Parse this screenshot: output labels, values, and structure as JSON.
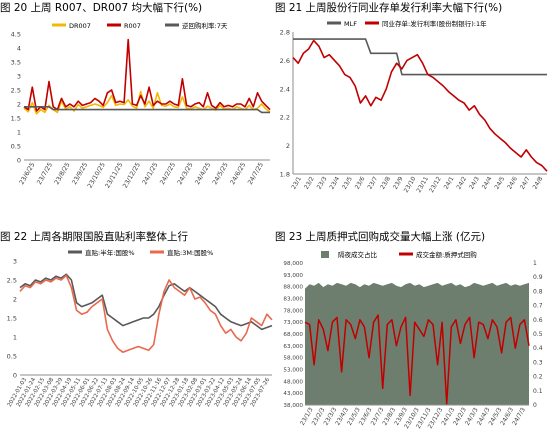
{
  "colors": {
    "orange": "#F5B800",
    "red": "#C00000",
    "dark": "#595959",
    "green": "#6E7E6E",
    "axis": "#8c8c8c"
  },
  "chart_data": [
    {
      "type": "line",
      "title": "图 20  上周 R007、DR007 均大幅下行(%)",
      "legend_position": "top",
      "ylim": [
        0,
        4.5
      ],
      "yticks": [
        "4.5",
        "4",
        "3.5",
        "3",
        "2.5",
        "2",
        "1.5",
        "1",
        "0.5",
        "0"
      ],
      "x_labels": [
        "23/6/25",
        "23/7/25",
        "23/8/25",
        "23/9/25",
        "23/10/25",
        "23/11/25",
        "23/12/25",
        "24/1/25",
        "24/2/25",
        "24/3/25",
        "24/4/25",
        "24/5/25",
        "24/6/25",
        "24/7/25"
      ],
      "series": [
        {
          "name": "DR007",
          "color": "#F5B800",
          "values": [
            1.85,
            1.72,
            2.05,
            1.65,
            1.8,
            1.7,
            1.95,
            1.8,
            1.7,
            2.1,
            1.82,
            1.9,
            1.75,
            1.98,
            1.85,
            1.9,
            1.95,
            2.0,
            1.95,
            1.88,
            2.05,
            2.3,
            1.95,
            2.0,
            1.98,
            2.15,
            1.92,
            1.85,
            2.45,
            1.9,
            2.1,
            1.85,
            2.4,
            1.95,
            1.92,
            2.0,
            1.9,
            1.88,
            2.25,
            1.85,
            1.82,
            1.9,
            1.85,
            1.8,
            1.92,
            1.85,
            1.78,
            1.95,
            1.82,
            1.85,
            1.8,
            1.9,
            1.85,
            1.8,
            1.95,
            1.8,
            1.85,
            2.0,
            1.82,
            1.72
          ]
        },
        {
          "name": "R007",
          "color": "#C00000",
          "values": [
            1.9,
            1.8,
            2.6,
            1.75,
            1.9,
            1.8,
            2.8,
            1.9,
            1.8,
            2.2,
            1.9,
            2.0,
            1.9,
            2.1,
            1.95,
            2.0,
            2.05,
            2.2,
            2.1,
            1.95,
            2.4,
            2.5,
            2.05,
            2.1,
            2.05,
            4.3,
            2.0,
            1.95,
            2.3,
            2.0,
            2.6,
            1.95,
            2.1,
            2.0,
            2.0,
            2.1,
            2.0,
            1.95,
            2.9,
            1.95,
            1.9,
            2.0,
            2.05,
            1.9,
            2.4,
            1.95,
            1.85,
            2.05,
            1.9,
            1.95,
            1.9,
            2.0,
            2.0,
            1.9,
            2.2,
            1.9,
            2.4,
            2.1,
            1.95,
            1.8
          ]
        },
        {
          "name": "逆回购利率:7天",
          "color": "#595959",
          "values": [
            1.9,
            1.9,
            1.9,
            1.9,
            1.9,
            1.9,
            1.9,
            1.8,
            1.8,
            1.8,
            1.8,
            1.8,
            1.8,
            1.8,
            1.8,
            1.8,
            1.8,
            1.8,
            1.8,
            1.8,
            1.8,
            1.8,
            1.8,
            1.8,
            1.8,
            1.8,
            1.8,
            1.8,
            1.8,
            1.8,
            1.8,
            1.8,
            1.8,
            1.8,
            1.8,
            1.8,
            1.8,
            1.8,
            1.8,
            1.8,
            1.8,
            1.8,
            1.8,
            1.8,
            1.8,
            1.8,
            1.8,
            1.8,
            1.8,
            1.8,
            1.8,
            1.8,
            1.8,
            1.8,
            1.8,
            1.8,
            1.8,
            1.7,
            1.7,
            1.7
          ]
        }
      ]
    },
    {
      "type": "line",
      "title": "图 21  上周股份行同业存单发行利率大幅下行(%)",
      "legend_position": "top",
      "ylim": [
        1.8,
        2.8
      ],
      "yticks": [
        "2.8",
        "2.6",
        "2.4",
        "2.2",
        "2",
        "1.8"
      ],
      "x_labels": [
        "23/1",
        "23/2",
        "23/3",
        "23/4",
        "23/5",
        "23/6",
        "23/7",
        "23/8",
        "23/9",
        "23/10",
        "23/11",
        "23/12",
        "24/1",
        "24/2",
        "24/3",
        "24/4",
        "24/5",
        "24/6",
        "24/7",
        "24/8"
      ],
      "series": [
        {
          "name": "MLF",
          "color": "#595959",
          "values": [
            2.75,
            2.75,
            2.75,
            2.75,
            2.75,
            2.75,
            2.75,
            2.75,
            2.75,
            2.75,
            2.75,
            2.75,
            2.75,
            2.75,
            2.75,
            2.65,
            2.65,
            2.65,
            2.65,
            2.65,
            2.65,
            2.5,
            2.5,
            2.5,
            2.5,
            2.5,
            2.5,
            2.5,
            2.5,
            2.5,
            2.5,
            2.5,
            2.5,
            2.5,
            2.5,
            2.5,
            2.5,
            2.5,
            2.5,
            2.5,
            2.5,
            2.5,
            2.5,
            2.5,
            2.5,
            2.5,
            2.5,
            2.5,
            2.5,
            2.5
          ]
        },
        {
          "name": "同业存单:发行利率(股份制银行):1年",
          "color": "#C00000",
          "values": [
            2.62,
            2.58,
            2.65,
            2.68,
            2.74,
            2.7,
            2.62,
            2.64,
            2.6,
            2.56,
            2.5,
            2.48,
            2.42,
            2.3,
            2.35,
            2.28,
            2.34,
            2.32,
            2.4,
            2.52,
            2.58,
            2.54,
            2.6,
            2.62,
            2.64,
            2.58,
            2.5,
            2.48,
            2.45,
            2.42,
            2.38,
            2.35,
            2.32,
            2.3,
            2.25,
            2.28,
            2.22,
            2.18,
            2.12,
            2.08,
            2.05,
            2.02,
            1.98,
            1.95,
            1.92,
            1.97,
            1.92,
            1.88,
            1.86,
            1.82
          ]
        }
      ]
    },
    {
      "type": "line",
      "title": "图 22  上周各期限国股直贴利率整体上行",
      "legend_position": "top",
      "ylim": [
        0,
        3
      ],
      "yticks": [
        "3",
        "2.5",
        "2",
        "1.5",
        "1",
        "0.5",
        "0"
      ],
      "x_labels": [
        "2022-01-03",
        "2022-01-24",
        "2022-02-15",
        "2022-03-08",
        "2022-03-29",
        "2022-04-19",
        "2022-05-11",
        "2022-06-01",
        "2022-06-22",
        "2022-07-13",
        "2022-08-03",
        "2022-08-24",
        "2022-09-14",
        "2022-10-05",
        "2022-10-26",
        "2022-11-16",
        "2022-12-07",
        "2022-12-28",
        "2023-01-18",
        "2023-02-08",
        "2023-03-01",
        "2023-03-22",
        "2023-04-12",
        "2023-05-03",
        "2023-05-24",
        "2023-06-14",
        "2023-07-05",
        "2023-07-26"
      ],
      "series": [
        {
          "name": "直贴:半年:国股%",
          "color": "#595959",
          "values": [
            2.3,
            2.4,
            2.35,
            2.5,
            2.45,
            2.55,
            2.5,
            2.6,
            2.55,
            2.65,
            2.5,
            1.9,
            1.8,
            1.85,
            1.9,
            2.0,
            2.1,
            1.6,
            1.5,
            1.4,
            1.3,
            1.35,
            1.4,
            1.45,
            1.5,
            1.5,
            1.6,
            1.8,
            2.1,
            2.35,
            2.4,
            2.3,
            2.2,
            2.3,
            2.2,
            2.1,
            2.0,
            1.9,
            1.8,
            1.6,
            1.5,
            1.4,
            1.35,
            1.3,
            1.35,
            1.4,
            1.3,
            1.2,
            1.25,
            1.3
          ]
        },
        {
          "name": "直贴:3M:国股%",
          "color": "#E8694E",
          "values": [
            2.2,
            2.35,
            2.3,
            2.45,
            2.4,
            2.5,
            2.45,
            2.55,
            2.5,
            2.62,
            2.3,
            1.7,
            1.6,
            1.65,
            1.8,
            1.9,
            2.0,
            1.2,
            0.9,
            0.7,
            0.6,
            0.65,
            0.7,
            0.75,
            0.7,
            0.65,
            0.8,
            1.6,
            2.2,
            2.5,
            2.3,
            2.2,
            2.1,
            2.3,
            2.0,
            2.05,
            1.9,
            1.7,
            1.6,
            1.3,
            1.1,
            1.2,
            1.0,
            0.9,
            1.1,
            1.5,
            1.4,
            1.3,
            1.6,
            1.45
          ]
        }
      ]
    },
    {
      "type": "bar",
      "title": "图 23  上周质押式回购成交量大幅上涨 (亿元)",
      "legend_position": "top",
      "ylim_left": [
        38000,
        98000
      ],
      "yticks_left": [
        "98,000",
        "93,000",
        "88,000",
        "83,000",
        "78,000",
        "73,000",
        "68,000",
        "63,000",
        "58,000",
        "53,000",
        "48,000",
        "43,000",
        "38,000"
      ],
      "ylim_right": [
        0,
        1
      ],
      "yticks_right": [
        "1",
        "0.9",
        "0.8",
        "0.7",
        "0.6",
        "0.5",
        "0.4",
        "0.3",
        "0.2",
        "0.1",
        "0"
      ],
      "x_labels": [
        "23/1/3",
        "23/2/3",
        "23/3/3",
        "23/4/3",
        "23/5/3",
        "23/6/3",
        "23/7/3",
        "23/8/3",
        "23/9/3",
        "23/10/3",
        "23/11/3",
        "23/12/3",
        "24/1/3",
        "24/2/3",
        "24/3/3",
        "24/4/3",
        "24/5/3",
        "24/6/3",
        "24/7/3"
      ],
      "series": [
        {
          "name": "隔夜成交占比",
          "color": "#6E7E6E",
          "axis": "right",
          "values": [
            0.82,
            0.85,
            0.84,
            0.86,
            0.83,
            0.85,
            0.84,
            0.86,
            0.85,
            0.84,
            0.86,
            0.85,
            0.83,
            0.85,
            0.84,
            0.86,
            0.85,
            0.84,
            0.85,
            0.86,
            0.84,
            0.83,
            0.85,
            0.86,
            0.84,
            0.85,
            0.83,
            0.84,
            0.85,
            0.86,
            0.84,
            0.85,
            0.86,
            0.84,
            0.85,
            0.83,
            0.84,
            0.86,
            0.85,
            0.84,
            0.85,
            0.86,
            0.84,
            0.85,
            0.86,
            0.84,
            0.85,
            0.84,
            0.85,
            0.86
          ]
        },
        {
          "name": "成交金额:质押式回购",
          "color": "#C00000",
          "axis": "left",
          "type": "line",
          "values": [
            73000,
            72000,
            55000,
            74000,
            70000,
            61000,
            73000,
            75000,
            52000,
            74000,
            72000,
            66000,
            74000,
            71000,
            58000,
            73000,
            76000,
            45000,
            72000,
            74000,
            63000,
            71000,
            75000,
            42000,
            73000,
            70000,
            67000,
            74000,
            72000,
            55000,
            73000,
            38500,
            71000,
            74000,
            64000,
            72000,
            75000,
            58000,
            73000,
            72000,
            66000,
            74000,
            71000,
            60000,
            73000,
            75000,
            62000,
            72000,
            74000,
            63000
          ]
        }
      ]
    }
  ]
}
